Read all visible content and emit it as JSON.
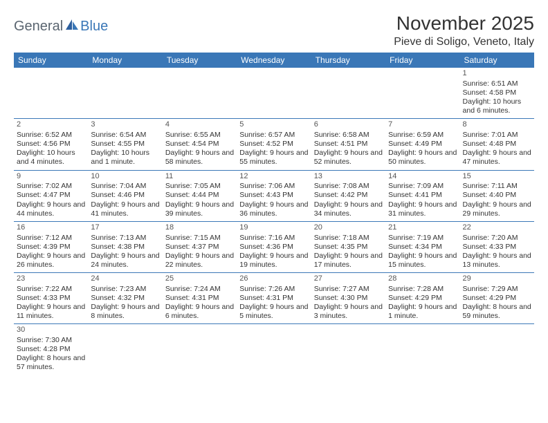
{
  "logo": {
    "general": "General",
    "blue": "Blue"
  },
  "title": "November 2025",
  "location": "Pieve di Soligo, Veneto, Italy",
  "colors": {
    "header_bg": "#3a77b7",
    "header_text": "#ffffff",
    "border": "#3a77b7",
    "text": "#333333",
    "logo_gray": "#5a6570",
    "logo_blue": "#3a77b7",
    "background": "#ffffff"
  },
  "weekdays": [
    "Sunday",
    "Monday",
    "Tuesday",
    "Wednesday",
    "Thursday",
    "Friday",
    "Saturday"
  ],
  "weeks": [
    [
      null,
      null,
      null,
      null,
      null,
      null,
      {
        "n": "1",
        "sr": "6:51 AM",
        "ss": "4:58 PM",
        "dl": "10 hours and 6 minutes."
      }
    ],
    [
      {
        "n": "2",
        "sr": "6:52 AM",
        "ss": "4:56 PM",
        "dl": "10 hours and 4 minutes."
      },
      {
        "n": "3",
        "sr": "6:54 AM",
        "ss": "4:55 PM",
        "dl": "10 hours and 1 minute."
      },
      {
        "n": "4",
        "sr": "6:55 AM",
        "ss": "4:54 PM",
        "dl": "9 hours and 58 minutes."
      },
      {
        "n": "5",
        "sr": "6:57 AM",
        "ss": "4:52 PM",
        "dl": "9 hours and 55 minutes."
      },
      {
        "n": "6",
        "sr": "6:58 AM",
        "ss": "4:51 PM",
        "dl": "9 hours and 52 minutes."
      },
      {
        "n": "7",
        "sr": "6:59 AM",
        "ss": "4:49 PM",
        "dl": "9 hours and 50 minutes."
      },
      {
        "n": "8",
        "sr": "7:01 AM",
        "ss": "4:48 PM",
        "dl": "9 hours and 47 minutes."
      }
    ],
    [
      {
        "n": "9",
        "sr": "7:02 AM",
        "ss": "4:47 PM",
        "dl": "9 hours and 44 minutes."
      },
      {
        "n": "10",
        "sr": "7:04 AM",
        "ss": "4:46 PM",
        "dl": "9 hours and 41 minutes."
      },
      {
        "n": "11",
        "sr": "7:05 AM",
        "ss": "4:44 PM",
        "dl": "9 hours and 39 minutes."
      },
      {
        "n": "12",
        "sr": "7:06 AM",
        "ss": "4:43 PM",
        "dl": "9 hours and 36 minutes."
      },
      {
        "n": "13",
        "sr": "7:08 AM",
        "ss": "4:42 PM",
        "dl": "9 hours and 34 minutes."
      },
      {
        "n": "14",
        "sr": "7:09 AM",
        "ss": "4:41 PM",
        "dl": "9 hours and 31 minutes."
      },
      {
        "n": "15",
        "sr": "7:11 AM",
        "ss": "4:40 PM",
        "dl": "9 hours and 29 minutes."
      }
    ],
    [
      {
        "n": "16",
        "sr": "7:12 AM",
        "ss": "4:39 PM",
        "dl": "9 hours and 26 minutes."
      },
      {
        "n": "17",
        "sr": "7:13 AM",
        "ss": "4:38 PM",
        "dl": "9 hours and 24 minutes."
      },
      {
        "n": "18",
        "sr": "7:15 AM",
        "ss": "4:37 PM",
        "dl": "9 hours and 22 minutes."
      },
      {
        "n": "19",
        "sr": "7:16 AM",
        "ss": "4:36 PM",
        "dl": "9 hours and 19 minutes."
      },
      {
        "n": "20",
        "sr": "7:18 AM",
        "ss": "4:35 PM",
        "dl": "9 hours and 17 minutes."
      },
      {
        "n": "21",
        "sr": "7:19 AM",
        "ss": "4:34 PM",
        "dl": "9 hours and 15 minutes."
      },
      {
        "n": "22",
        "sr": "7:20 AM",
        "ss": "4:33 PM",
        "dl": "9 hours and 13 minutes."
      }
    ],
    [
      {
        "n": "23",
        "sr": "7:22 AM",
        "ss": "4:33 PM",
        "dl": "9 hours and 11 minutes."
      },
      {
        "n": "24",
        "sr": "7:23 AM",
        "ss": "4:32 PM",
        "dl": "9 hours and 8 minutes."
      },
      {
        "n": "25",
        "sr": "7:24 AM",
        "ss": "4:31 PM",
        "dl": "9 hours and 6 minutes."
      },
      {
        "n": "26",
        "sr": "7:26 AM",
        "ss": "4:31 PM",
        "dl": "9 hours and 5 minutes."
      },
      {
        "n": "27",
        "sr": "7:27 AM",
        "ss": "4:30 PM",
        "dl": "9 hours and 3 minutes."
      },
      {
        "n": "28",
        "sr": "7:28 AM",
        "ss": "4:29 PM",
        "dl": "9 hours and 1 minute."
      },
      {
        "n": "29",
        "sr": "7:29 AM",
        "ss": "4:29 PM",
        "dl": "8 hours and 59 minutes."
      }
    ],
    [
      {
        "n": "30",
        "sr": "7:30 AM",
        "ss": "4:28 PM",
        "dl": "8 hours and 57 minutes."
      },
      null,
      null,
      null,
      null,
      null,
      null
    ]
  ],
  "labels": {
    "sunrise": "Sunrise:",
    "sunset": "Sunset:",
    "daylight": "Daylight:"
  }
}
